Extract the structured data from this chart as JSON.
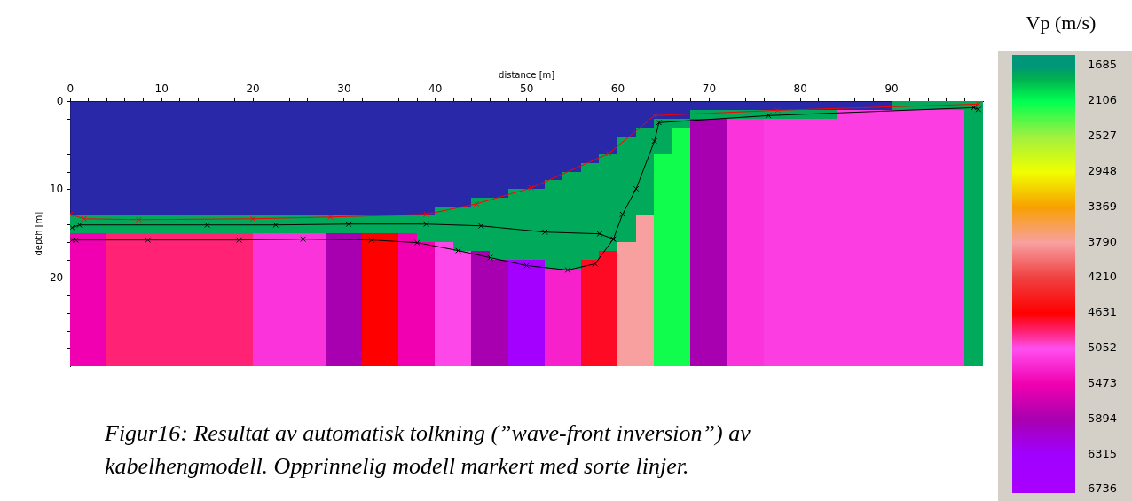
{
  "chart_data": {
    "type": "heatmap",
    "xlabel": "distance [m]",
    "ylabel": "depth [m]",
    "clabel": "Vp (m/s)",
    "annotations": [
      "Figur16: Resultat av automatisk tolkning (”wave-front inversion”) av kabelhengmodell. Opprinnelig modell markert med sorte linjer."
    ],
    "xlim": [
      0,
      100
    ],
    "xticks": [
      0,
      {
        "value": 2,
        "label": null
      },
      {
        "value": 4,
        "label": null
      },
      {
        "value": 6,
        "label": null
      },
      {
        "value": 8,
        "label": null
      },
      10,
      {
        "value": 12,
        "label": null
      },
      {
        "value": 14,
        "label": null
      },
      {
        "value": 16,
        "label": null
      },
      {
        "value": 18,
        "label": null
      },
      20,
      {
        "value": 22,
        "label": null
      },
      {
        "value": 24,
        "label": null
      },
      {
        "value": 26,
        "label": null
      },
      {
        "value": 28,
        "label": null
      },
      30,
      {
        "value": 32,
        "label": null
      },
      {
        "value": 34,
        "label": null
      },
      {
        "value": 36,
        "label": null
      },
      {
        "value": 38,
        "label": null
      },
      40,
      {
        "value": 42,
        "label": null
      },
      {
        "value": 44,
        "label": null
      },
      {
        "value": 46,
        "label": null
      },
      {
        "value": 48,
        "label": null
      },
      50,
      {
        "value": 52,
        "label": null
      },
      {
        "value": 54,
        "label": null
      },
      {
        "value": 56,
        "label": null
      },
      {
        "value": 58,
        "label": null
      },
      60,
      {
        "value": 62,
        "label": null
      },
      {
        "value": 64,
        "label": null
      },
      {
        "value": 66,
        "label": null
      },
      {
        "value": 68,
        "label": null
      },
      70,
      {
        "value": 72,
        "label": null
      },
      {
        "value": 74,
        "label": null
      },
      {
        "value": 76,
        "label": null
      },
      {
        "value": 78,
        "label": null
      },
      80,
      {
        "value": 82,
        "label": null
      },
      {
        "value": 84,
        "label": null
      },
      {
        "value": 86,
        "label": null
      },
      {
        "value": 88,
        "label": null
      },
      90,
      {
        "value": 92,
        "label": null
      },
      {
        "value": 94,
        "label": null
      },
      {
        "value": 96,
        "label": null
      },
      {
        "value": 98,
        "label": null
      }
    ],
    "ylim": [
      30,
      0
    ],
    "yticks": [
      0,
      {
        "value": 2,
        "label": null
      },
      {
        "value": 4,
        "label": null
      },
      {
        "value": 6,
        "label": null
      },
      {
        "value": 8,
        "label": null
      },
      10,
      {
        "value": 12,
        "label": null
      },
      {
        "value": 14,
        "label": null
      },
      {
        "value": 16,
        "label": null
      },
      {
        "value": 18,
        "label": null
      },
      20,
      {
        "value": 22,
        "label": null
      },
      {
        "value": 24,
        "label": null
      },
      {
        "value": 26,
        "label": null
      },
      {
        "value": 28,
        "label": null
      }
    ],
    "clim": [
      1685,
      6736
    ],
    "cticks": [
      1685,
      2106,
      2527,
      2948,
      3369,
      3790,
      4210,
      4631,
      5052,
      5473,
      5894,
      6315,
      6736
    ],
    "marker": "cross",
    "x": [
      1,
      3,
      5,
      7,
      9,
      11,
      13,
      15,
      17,
      19,
      21,
      23,
      25,
      27,
      29,
      31,
      33,
      35,
      37,
      39,
      41,
      43,
      45,
      47,
      49,
      51,
      53,
      55,
      57,
      59,
      61,
      63,
      65,
      67,
      69,
      71,
      73,
      75,
      77,
      79,
      81,
      83,
      85,
      87,
      89,
      91,
      93,
      95,
      97,
      99
    ],
    "cells": [
      [
        null,
        null,
        null,
        null,
        null,
        null,
        null,
        null,
        null,
        null,
        null,
        null,
        null,
        null,
        null,
        null,
        null,
        null,
        null,
        null,
        null,
        null,
        null,
        null,
        null,
        null,
        null,
        null,
        null,
        null,
        null,
        null,
        null,
        null,
        null,
        null,
        null,
        null,
        null,
        null,
        null,
        null,
        null,
        null,
        null,
        1800,
        1800,
        1800,
        1800,
        1800
      ],
      [
        null,
        null,
        null,
        null,
        null,
        null,
        null,
        null,
        null,
        null,
        null,
        null,
        null,
        null,
        null,
        null,
        null,
        null,
        null,
        null,
        null,
        null,
        null,
        null,
        null,
        null,
        null,
        null,
        null,
        null,
        null,
        null,
        null,
        null,
        1800,
        1800,
        1800,
        1800,
        1800,
        1800,
        1800,
        1800,
        5150,
        5150,
        5150,
        5150,
        5150,
        5150,
        5150,
        1800
      ],
      [
        null,
        null,
        null,
        null,
        null,
        null,
        null,
        null,
        null,
        null,
        null,
        null,
        null,
        null,
        null,
        null,
        null,
        null,
        null,
        null,
        null,
        null,
        null,
        null,
        null,
        null,
        null,
        null,
        null,
        null,
        null,
        null,
        1800,
        1800,
        5894,
        5894,
        5200,
        5200,
        5150,
        5150,
        5150,
        5150,
        5150,
        5150,
        5150,
        5150,
        5150,
        5150,
        5150,
        1800
      ],
      [
        null,
        null,
        null,
        null,
        null,
        null,
        null,
        null,
        null,
        null,
        null,
        null,
        null,
        null,
        null,
        null,
        null,
        null,
        null,
        null,
        null,
        null,
        null,
        null,
        null,
        null,
        null,
        null,
        null,
        null,
        null,
        1800,
        1800,
        2150,
        5894,
        5894,
        5200,
        5200,
        5150,
        5150,
        5150,
        5150,
        5150,
        5150,
        5150,
        5150,
        5150,
        5150,
        5150,
        1800
      ],
      [
        null,
        null,
        null,
        null,
        null,
        null,
        null,
        null,
        null,
        null,
        null,
        null,
        null,
        null,
        null,
        null,
        null,
        null,
        null,
        null,
        null,
        null,
        null,
        null,
        null,
        null,
        null,
        null,
        null,
        null,
        1800,
        1800,
        1800,
        2150,
        5894,
        5894,
        5200,
        5200,
        5150,
        5150,
        5150,
        5150,
        5150,
        5150,
        5150,
        5150,
        5150,
        5150,
        5150,
        1800
      ],
      [
        null,
        null,
        null,
        null,
        null,
        null,
        null,
        null,
        null,
        null,
        null,
        null,
        null,
        null,
        null,
        null,
        null,
        null,
        null,
        null,
        null,
        null,
        null,
        null,
        null,
        null,
        null,
        null,
        null,
        null,
        1800,
        1800,
        1800,
        2150,
        5894,
        5894,
        5200,
        5200,
        5150,
        5150,
        5150,
        5150,
        5150,
        5150,
        5150,
        5150,
        5150,
        5150,
        5150,
        1800
      ],
      [
        null,
        null,
        null,
        null,
        null,
        null,
        null,
        null,
        null,
        null,
        null,
        null,
        null,
        null,
        null,
        null,
        null,
        null,
        null,
        null,
        null,
        null,
        null,
        null,
        null,
        null,
        null,
        null,
        null,
        1800,
        1800,
        1800,
        2150,
        2150,
        5894,
        5894,
        5200,
        5200,
        5150,
        5150,
        5150,
        5150,
        5150,
        5150,
        5150,
        5150,
        5150,
        5150,
        5150,
        1800
      ],
      [
        null,
        null,
        null,
        null,
        null,
        null,
        null,
        null,
        null,
        null,
        null,
        null,
        null,
        null,
        null,
        null,
        null,
        null,
        null,
        null,
        null,
        null,
        null,
        null,
        null,
        null,
        null,
        null,
        1800,
        1800,
        1800,
        1800,
        2150,
        2150,
        5894,
        5894,
        5200,
        5200,
        5150,
        5150,
        5150,
        5150,
        5150,
        5150,
        5150,
        5150,
        5150,
        5150,
        5150,
        1800
      ],
      [
        null,
        null,
        null,
        null,
        null,
        null,
        null,
        null,
        null,
        null,
        null,
        null,
        null,
        null,
        null,
        null,
        null,
        null,
        null,
        null,
        null,
        null,
        null,
        null,
        null,
        null,
        null,
        1800,
        1800,
        1800,
        1800,
        1800,
        2150,
        2150,
        5894,
        5894,
        5200,
        5200,
        5150,
        5150,
        5150,
        5150,
        5150,
        5150,
        5150,
        5150,
        5150,
        5150,
        5150,
        1800
      ],
      [
        null,
        null,
        null,
        null,
        null,
        null,
        null,
        null,
        null,
        null,
        null,
        null,
        null,
        null,
        null,
        null,
        null,
        null,
        null,
        null,
        null,
        null,
        null,
        null,
        null,
        null,
        1800,
        1800,
        1800,
        1800,
        1800,
        1800,
        2150,
        2150,
        5894,
        5894,
        5200,
        5200,
        5150,
        5150,
        5150,
        5150,
        5150,
        5150,
        5150,
        5150,
        5150,
        5150,
        5150,
        1800
      ],
      [
        null,
        null,
        null,
        null,
        null,
        null,
        null,
        null,
        null,
        null,
        null,
        null,
        null,
        null,
        null,
        null,
        null,
        null,
        null,
        null,
        null,
        null,
        null,
        null,
        1800,
        1800,
        1800,
        1800,
        1800,
        1800,
        1800,
        1800,
        2150,
        2150,
        5894,
        5894,
        5200,
        5200,
        5150,
        5150,
        5150,
        5150,
        5150,
        5150,
        5150,
        5150,
        5150,
        5150,
        5150,
        1800
      ],
      [
        null,
        null,
        null,
        null,
        null,
        null,
        null,
        null,
        null,
        null,
        null,
        null,
        null,
        null,
        null,
        null,
        null,
        null,
        null,
        null,
        null,
        null,
        1800,
        1800,
        1800,
        1800,
        1800,
        1800,
        1800,
        1800,
        1800,
        1800,
        2150,
        2150,
        5894,
        5894,
        5200,
        5200,
        5150,
        5150,
        5150,
        5150,
        5150,
        5150,
        5150,
        5150,
        5150,
        5150,
        5150,
        1800
      ],
      [
        null,
        null,
        null,
        null,
        null,
        null,
        null,
        null,
        null,
        null,
        null,
        null,
        null,
        null,
        null,
        null,
        null,
        null,
        null,
        null,
        1800,
        1800,
        1800,
        1800,
        1800,
        1800,
        1800,
        1800,
        1800,
        1800,
        1800,
        1800,
        2150,
        2150,
        5894,
        5894,
        5200,
        5200,
        5150,
        5150,
        5150,
        5150,
        5150,
        5150,
        5150,
        5150,
        5150,
        5150,
        5150,
        1800
      ],
      [
        1800,
        1800,
        1800,
        1800,
        1800,
        1800,
        1800,
        1800,
        1800,
        1800,
        1800,
        1800,
        1800,
        1800,
        1800,
        1800,
        1800,
        1800,
        1800,
        1800,
        1800,
        1800,
        1800,
        1800,
        1800,
        1800,
        1800,
        1800,
        1800,
        1800,
        1800,
        3790,
        2150,
        2150,
        5894,
        5894,
        5200,
        5200,
        5150,
        5150,
        5150,
        5150,
        5150,
        5150,
        5150,
        5150,
        5150,
        5150,
        5150,
        1800
      ],
      [
        1800,
        1800,
        1800,
        1800,
        1800,
        1800,
        1800,
        1800,
        1800,
        1800,
        1800,
        1800,
        1800,
        1800,
        1800,
        1800,
        1800,
        1800,
        1800,
        1800,
        1800,
        1800,
        1800,
        1800,
        1800,
        1800,
        1800,
        1800,
        1800,
        1800,
        1800,
        3790,
        2150,
        2150,
        5894,
        5894,
        5200,
        5200,
        5150,
        5150,
        5150,
        5150,
        5150,
        5150,
        5150,
        5150,
        5150,
        5150,
        5150,
        1800
      ],
      [
        5473,
        5473,
        4850,
        4850,
        4850,
        4850,
        4850,
        4850,
        4850,
        4850,
        5200,
        5200,
        5200,
        5200,
        5894,
        5894,
        4631,
        4631,
        5473,
        1800,
        1800,
        1800,
        1800,
        1800,
        1800,
        1800,
        1800,
        1800,
        1800,
        1800,
        1800,
        3790,
        2150,
        2150,
        5894,
        5894,
        5200,
        5200,
        5150,
        5150,
        5150,
        5150,
        5150,
        5150,
        5150,
        5150,
        5150,
        5150,
        5150,
        1800
      ],
      [
        5473,
        5473,
        4850,
        4850,
        4850,
        4850,
        4850,
        4850,
        4850,
        4850,
        5200,
        5200,
        5200,
        5200,
        5894,
        5894,
        4631,
        4631,
        5473,
        5473,
        5100,
        1800,
        1800,
        1800,
        1800,
        1800,
        1800,
        1800,
        1800,
        1800,
        3790,
        3790,
        2150,
        2150,
        5894,
        5894,
        5200,
        5200,
        5150,
        5150,
        5150,
        5150,
        5150,
        5150,
        5150,
        5150,
        5150,
        5150,
        5150,
        1800
      ],
      [
        5473,
        5473,
        4850,
        4850,
        4850,
        4850,
        4850,
        4850,
        4850,
        4850,
        5200,
        5200,
        5200,
        5200,
        5894,
        5894,
        4631,
        4631,
        5473,
        5473,
        5100,
        5100,
        5894,
        1800,
        1800,
        1800,
        1800,
        1800,
        1800,
        4700,
        3790,
        3790,
        2150,
        2150,
        5894,
        5894,
        5200,
        5200,
        5150,
        5150,
        5150,
        5150,
        5150,
        5150,
        5150,
        5150,
        5150,
        5150,
        5150,
        1800
      ],
      [
        5473,
        5473,
        4850,
        4850,
        4850,
        4850,
        4850,
        4850,
        4850,
        4850,
        5200,
        5200,
        5200,
        5200,
        5894,
        5894,
        4631,
        4631,
        5473,
        5473,
        5100,
        5100,
        5894,
        5894,
        6500,
        6500,
        1800,
        1800,
        4700,
        4700,
        3790,
        3790,
        2150,
        2150,
        5894,
        5894,
        5200,
        5200,
        5150,
        5150,
        5150,
        5150,
        5150,
        5150,
        5150,
        5150,
        5150,
        5150,
        5150,
        1800
      ],
      [
        5473,
        5473,
        4850,
        4850,
        4850,
        4850,
        4850,
        4850,
        4850,
        4850,
        5200,
        5200,
        5200,
        5200,
        5894,
        5894,
        4631,
        4631,
        5473,
        5473,
        5100,
        5100,
        5894,
        5894,
        6500,
        6500,
        5300,
        5300,
        4700,
        4700,
        3790,
        3790,
        2150,
        2150,
        5894,
        5894,
        5200,
        5200,
        5150,
        5150,
        5150,
        5150,
        5150,
        5150,
        5150,
        5150,
        5150,
        5150,
        5150,
        1800
      ],
      [
        5473,
        5473,
        4850,
        4850,
        4850,
        4850,
        4850,
        4850,
        4850,
        4850,
        5200,
        5200,
        5200,
        5200,
        5894,
        5894,
        4631,
        4631,
        5473,
        5473,
        5100,
        5100,
        5894,
        5894,
        6500,
        6500,
        5300,
        5300,
        4700,
        4700,
        3790,
        3790,
        2150,
        2150,
        5894,
        5894,
        5200,
        5200,
        5150,
        5150,
        5150,
        5150,
        5150,
        5150,
        5150,
        5150,
        5150,
        5150,
        5150,
        1800
      ],
      [
        5473,
        5473,
        4850,
        4850,
        4850,
        4850,
        4850,
        4850,
        4850,
        4850,
        5200,
        5200,
        5200,
        5200,
        5894,
        5894,
        4631,
        4631,
        5473,
        5473,
        5100,
        5100,
        5894,
        5894,
        6500,
        6500,
        5300,
        5300,
        4700,
        4700,
        3790,
        3790,
        2150,
        2150,
        5894,
        5894,
        5200,
        5200,
        5150,
        5150,
        5150,
        5150,
        5150,
        5150,
        5150,
        5150,
        5150,
        5150,
        5150,
        1800
      ],
      [
        5473,
        5473,
        4850,
        4850,
        4850,
        4850,
        4850,
        4850,
        4850,
        4850,
        5200,
        5200,
        5200,
        5200,
        5894,
        5894,
        4631,
        4631,
        5473,
        5473,
        5100,
        5100,
        5894,
        5894,
        6500,
        6500,
        5300,
        5300,
        4700,
        4700,
        3790,
        3790,
        2150,
        2150,
        5894,
        5894,
        5200,
        5200,
        5150,
        5150,
        5150,
        5150,
        5150,
        5150,
        5150,
        5150,
        5150,
        5150,
        5150,
        1800
      ],
      [
        5473,
        5473,
        4850,
        4850,
        4850,
        4850,
        4850,
        4850,
        4850,
        4850,
        5200,
        5200,
        5200,
        5200,
        5894,
        5894,
        4631,
        4631,
        5473,
        5473,
        5100,
        5100,
        5894,
        5894,
        6500,
        6500,
        5300,
        5300,
        4700,
        4700,
        3790,
        3790,
        2150,
        2150,
        5894,
        5894,
        5200,
        5200,
        5150,
        5150,
        5150,
        5150,
        5150,
        5150,
        5150,
        5150,
        5150,
        5150,
        5150,
        1800
      ],
      [
        5473,
        5473,
        4850,
        4850,
        4850,
        4850,
        4850,
        4850,
        4850,
        4850,
        5200,
        5200,
        5200,
        5200,
        5894,
        5894,
        4631,
        4631,
        5473,
        5473,
        5100,
        5100,
        5894,
        5894,
        6500,
        6500,
        5300,
        5300,
        4700,
        4700,
        3790,
        3790,
        2150,
        2150,
        5894,
        5894,
        5200,
        5200,
        5150,
        5150,
        5150,
        5150,
        5150,
        5150,
        5150,
        5150,
        5150,
        5150,
        5150,
        1800
      ],
      [
        5473,
        5473,
        4850,
        4850,
        4850,
        4850,
        4850,
        4850,
        4850,
        4850,
        5200,
        5200,
        5200,
        5200,
        5894,
        5894,
        4631,
        4631,
        5473,
        5473,
        5100,
        5100,
        5894,
        5894,
        6500,
        6500,
        5300,
        5300,
        4700,
        4700,
        3790,
        3790,
        2150,
        2150,
        5894,
        5894,
        5200,
        5200,
        5150,
        5150,
        5150,
        5150,
        5150,
        5150,
        5150,
        5150,
        5150,
        5150,
        5150,
        1800
      ],
      [
        5473,
        5473,
        4850,
        4850,
        4850,
        4850,
        4850,
        4850,
        4850,
        4850,
        5200,
        5200,
        5200,
        5200,
        5894,
        5894,
        4631,
        4631,
        5473,
        5473,
        5100,
        5100,
        5894,
        5894,
        6500,
        6500,
        5300,
        5300,
        4700,
        4700,
        3790,
        3790,
        2150,
        2150,
        5894,
        5894,
        5200,
        5200,
        5150,
        5150,
        5150,
        5150,
        5150,
        5150,
        5150,
        5150,
        5150,
        5150,
        5150,
        1800
      ],
      [
        5473,
        5473,
        4850,
        4850,
        4850,
        4850,
        4850,
        4850,
        4850,
        4850,
        5200,
        5200,
        5200,
        5200,
        5894,
        5894,
        4631,
        4631,
        5473,
        5473,
        5100,
        5100,
        5894,
        5894,
        6500,
        6500,
        5300,
        5300,
        4700,
        4700,
        3790,
        3790,
        2150,
        2150,
        5894,
        5894,
        5200,
        5200,
        5150,
        5150,
        5150,
        5150,
        5150,
        5150,
        5150,
        5150,
        5150,
        5150,
        5150,
        1800
      ],
      [
        5473,
        5473,
        4850,
        4850,
        4850,
        4850,
        4850,
        4850,
        4850,
        4850,
        5200,
        5200,
        5200,
        5200,
        5894,
        5894,
        4631,
        4631,
        5473,
        5473,
        5100,
        5100,
        5894,
        5894,
        6500,
        6500,
        5300,
        5300,
        4700,
        4700,
        3790,
        3790,
        2150,
        2150,
        5894,
        5894,
        5200,
        5200,
        5150,
        5150,
        5150,
        5150,
        5150,
        5150,
        5150,
        5150,
        5150,
        5150,
        5150,
        1800
      ],
      [
        5473,
        5473,
        4850,
        4850,
        4850,
        4850,
        4850,
        4850,
        4850,
        4850,
        5200,
        5200,
        5200,
        5200,
        5894,
        5894,
        4631,
        4631,
        5473,
        5473,
        5100,
        5100,
        5894,
        5894,
        6500,
        6500,
        5300,
        5300,
        4700,
        4700,
        3790,
        3790,
        2150,
        2150,
        5894,
        5894,
        5200,
        5200,
        5150,
        5150,
        5150,
        5150,
        5150,
        5150,
        5150,
        5150,
        5150,
        5150,
        5150,
        1800
      ]
    ],
    "series": [
      {
        "type": "line",
        "color": "#ff0000",
        "x": [
          0,
          1.5,
          7.5,
          20,
          28.5,
          39,
          44.5,
          50.5,
          59,
          64,
          77.5,
          99.5
        ],
        "values": [
          12.8,
          13.3,
          13.4,
          13.3,
          13.1,
          12.8,
          11.6,
          9.8,
          5.9,
          1.6,
          1,
          0.3
        ]
      },
      {
        "type": "line",
        "color": "#000000",
        "x": [
          0.2,
          1,
          15,
          22.5,
          30.5,
          39,
          45,
          52,
          58,
          59.5,
          60.5,
          62,
          64,
          64.5,
          76.5,
          99,
          99.5
        ],
        "values": [
          14.3,
          14,
          14,
          14,
          13.9,
          13.9,
          14.1,
          14.8,
          15,
          15.6,
          12.8,
          9.9,
          4.5,
          2.4,
          1.6,
          0.7,
          0.9
        ]
      },
      {
        "type": "line",
        "color": "#000000",
        "x": [
          0.2,
          0.6,
          8.5,
          18.5,
          25.5,
          33,
          38,
          42.5,
          46,
          50,
          54.5,
          57.5,
          59.5
        ],
        "values": [
          15.7,
          15.7,
          15.7,
          15.7,
          15.6,
          15.7,
          16,
          16.9,
          17.7,
          18.6,
          19.1,
          18.4,
          15.6
        ]
      }
    ]
  }
}
